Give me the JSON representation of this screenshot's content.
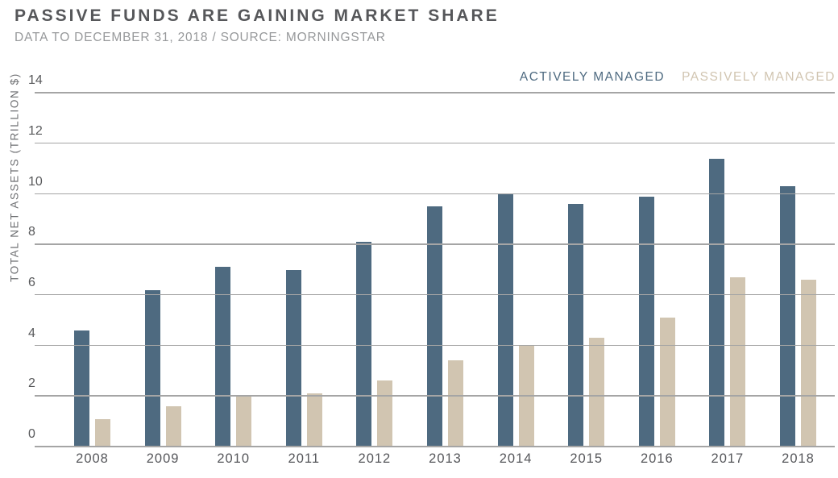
{
  "header": {
    "title": "PASSIVE FUNDS ARE GAINING MARKET SHARE",
    "subtitle": "DATA TO DECEMBER 31, 2018 / SOURCE: MORNINGSTAR"
  },
  "chart_data": {
    "type": "bar",
    "title": "PASSIVE FUNDS ARE GAINING MARKET SHARE",
    "categories": [
      "2008",
      "2009",
      "2010",
      "2011",
      "2012",
      "2013",
      "2014",
      "2015",
      "2016",
      "2017",
      "2018"
    ],
    "series": [
      {
        "name": "ACTIVELY MANAGED",
        "color": "#4e6a80",
        "values": [
          4.6,
          6.2,
          7.1,
          7.0,
          8.1,
          9.5,
          10.0,
          9.6,
          9.9,
          11.4,
          10.3
        ]
      },
      {
        "name": "PASSIVELY MANAGED",
        "color": "#d1c5b1",
        "values": [
          1.1,
          1.6,
          2.0,
          2.1,
          2.6,
          3.4,
          4.0,
          4.3,
          5.1,
          6.7,
          6.6
        ]
      }
    ],
    "xlabel": "",
    "ylabel": "TOTAL NET ASSETS (TRILLION $)",
    "yticks": [
      0,
      2,
      4,
      6,
      8,
      10,
      12,
      14
    ],
    "ylim": [
      0,
      14
    ],
    "grid": true,
    "legend_position": "top-right"
  },
  "colors": {
    "active_bar": "#4e6a80",
    "passive_bar": "#d1c5b1",
    "gridline": "#a5a5a5",
    "title_text": "#56575a",
    "subtitle_text": "#97999b",
    "axis_text": "#58595b"
  }
}
